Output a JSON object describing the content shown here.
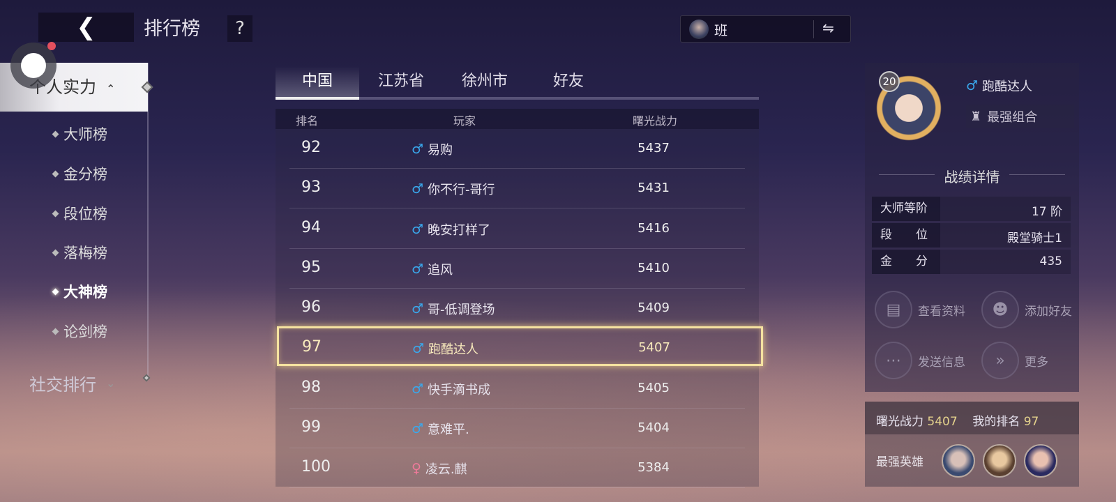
{
  "header": {
    "back_icon": "chevron-left",
    "title": "排行榜",
    "help": "?"
  },
  "hero_switch": {
    "hero_name": "班",
    "switch_icon": "⇋"
  },
  "sidebar": {
    "group1": {
      "label": "个人实力",
      "expanded": true
    },
    "items": [
      {
        "label": "大师榜",
        "active": false
      },
      {
        "label": "金分榜",
        "active": false
      },
      {
        "label": "段位榜",
        "active": false
      },
      {
        "label": "落梅榜",
        "active": false
      },
      {
        "label": "大神榜",
        "active": true
      },
      {
        "label": "论剑榜",
        "active": false
      }
    ],
    "group2": {
      "label": "社交排行",
      "expanded": false
    }
  },
  "tabs": [
    {
      "label": "中国",
      "selected": true
    },
    {
      "label": "江苏省"
    },
    {
      "label": "徐州市"
    },
    {
      "label": "好友"
    }
  ],
  "table": {
    "headers": {
      "rank": "排名",
      "player": "玩家",
      "power": "曙光战力"
    },
    "rows": [
      {
        "rank": "92",
        "gender": "male",
        "name": "易购",
        "power": "5437"
      },
      {
        "rank": "93",
        "gender": "male",
        "name": "你不行-哥行",
        "power": "5431"
      },
      {
        "rank": "94",
        "gender": "male",
        "name": "晚安打样了",
        "power": "5416"
      },
      {
        "rank": "95",
        "gender": "male",
        "name": "追风",
        "power": "5410"
      },
      {
        "rank": "96",
        "gender": "male",
        "name": "哥-低调登场",
        "power": "5409"
      },
      {
        "rank": "97",
        "gender": "male",
        "name": "跑酷达人",
        "power": "5407",
        "highlighted": true
      },
      {
        "rank": "98",
        "gender": "male",
        "name": "快手滴书成",
        "power": "5405"
      },
      {
        "rank": "99",
        "gender": "male",
        "name": "意难平.",
        "power": "5404"
      },
      {
        "rank": "100",
        "gender": "female",
        "name": "凌云.麒",
        "power": "5384"
      }
    ]
  },
  "profile": {
    "level": "20",
    "gender": "male",
    "name": "跑酷达人",
    "combo": "最强组合",
    "section_title": "战绩详情",
    "stats": [
      {
        "key": "大师等阶",
        "value": "17 阶"
      },
      {
        "key": "段　　位",
        "value": "殿堂骑士1"
      },
      {
        "key": "金　　分",
        "value": "435"
      }
    ],
    "actions": [
      {
        "label": "查看资料",
        "icon": "document-search-icon"
      },
      {
        "label": "添加好友",
        "icon": "add-friend-icon"
      },
      {
        "label": "发送信息",
        "icon": "message-icon"
      },
      {
        "label": "更多",
        "icon": "double-chevron-icon"
      }
    ]
  },
  "my_summary": {
    "power_label": "曙光战力",
    "power": "5407",
    "rank_label": "我的排名",
    "rank": "97",
    "heroes_label": "最强英雄"
  },
  "colors": {
    "highlight": "#f5e2a0",
    "male": "#3aa8ec",
    "female": "#f07a9a",
    "gold": "#e4d28c"
  }
}
